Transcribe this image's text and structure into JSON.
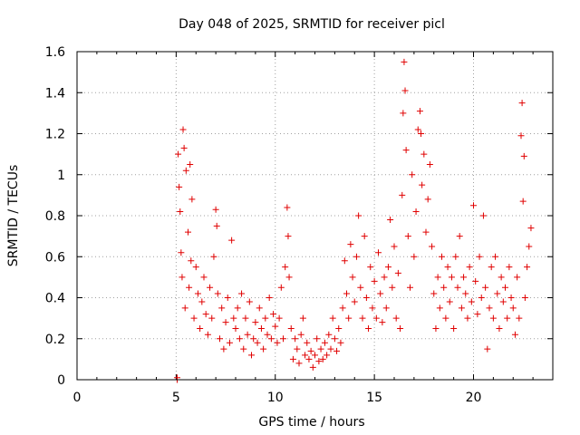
{
  "chart_data": {
    "type": "scatter",
    "title": "Day 048 of 2025, SRMTID for receiver picl",
    "xlabel": "GPS time / hours",
    "ylabel": "SRMTID / TECUs",
    "xlim": [
      0,
      24
    ],
    "ylim": [
      0,
      1.6
    ],
    "xticks": [
      0,
      5,
      10,
      15,
      20
    ],
    "xtick_labels": [
      "0",
      "5",
      "10",
      "15",
      "20"
    ],
    "yticks": [
      0,
      0.2,
      0.4,
      0.6,
      0.8,
      1.0,
      1.2,
      1.4,
      1.6
    ],
    "ytick_labels": [
      "0",
      "0.2",
      "0.4",
      "0.6",
      "0.8",
      "1",
      "1.2",
      "1.4",
      "1.6"
    ],
    "grid": true,
    "legend": "none",
    "marker": "plus",
    "series": [
      {
        "name": "SRMTID",
        "color": "#e00000",
        "points": [
          [
            5.05,
            0.0
          ],
          [
            5.05,
            0.01
          ],
          [
            5.1,
            1.1
          ],
          [
            5.15,
            0.94
          ],
          [
            5.2,
            0.82
          ],
          [
            5.25,
            0.62
          ],
          [
            5.3,
            0.5
          ],
          [
            5.35,
            1.22
          ],
          [
            5.4,
            1.13
          ],
          [
            5.45,
            0.35
          ],
          [
            5.5,
            1.02
          ],
          [
            5.6,
            0.72
          ],
          [
            5.65,
            0.45
          ],
          [
            5.7,
            1.05
          ],
          [
            5.75,
            0.58
          ],
          [
            5.8,
            0.88
          ],
          [
            5.9,
            0.3
          ],
          [
            6.0,
            0.55
          ],
          [
            6.1,
            0.42
          ],
          [
            6.2,
            0.25
          ],
          [
            6.3,
            0.38
          ],
          [
            6.4,
            0.5
          ],
          [
            6.5,
            0.32
          ],
          [
            6.6,
            0.22
          ],
          [
            6.7,
            0.45
          ],
          [
            6.8,
            0.3
          ],
          [
            6.9,
            0.6
          ],
          [
            7.0,
            0.83
          ],
          [
            7.05,
            0.75
          ],
          [
            7.1,
            0.42
          ],
          [
            7.2,
            0.2
          ],
          [
            7.3,
            0.35
          ],
          [
            7.4,
            0.15
          ],
          [
            7.5,
            0.28
          ],
          [
            7.6,
            0.4
          ],
          [
            7.7,
            0.18
          ],
          [
            7.8,
            0.68
          ],
          [
            7.9,
            0.3
          ],
          [
            8.0,
            0.25
          ],
          [
            8.1,
            0.35
          ],
          [
            8.2,
            0.2
          ],
          [
            8.3,
            0.42
          ],
          [
            8.4,
            0.15
          ],
          [
            8.5,
            0.3
          ],
          [
            8.6,
            0.22
          ],
          [
            8.7,
            0.38
          ],
          [
            8.8,
            0.12
          ],
          [
            8.9,
            0.2
          ],
          [
            9.0,
            0.28
          ],
          [
            9.1,
            0.18
          ],
          [
            9.2,
            0.35
          ],
          [
            9.3,
            0.25
          ],
          [
            9.4,
            0.15
          ],
          [
            9.5,
            0.3
          ],
          [
            9.6,
            0.22
          ],
          [
            9.7,
            0.4
          ],
          [
            9.8,
            0.2
          ],
          [
            9.9,
            0.32
          ],
          [
            10.0,
            0.26
          ],
          [
            10.1,
            0.18
          ],
          [
            10.2,
            0.3
          ],
          [
            10.3,
            0.45
          ],
          [
            10.4,
            0.2
          ],
          [
            10.5,
            0.55
          ],
          [
            10.6,
            0.84
          ],
          [
            10.65,
            0.7
          ],
          [
            10.7,
            0.5
          ],
          [
            10.8,
            0.25
          ],
          [
            10.9,
            0.1
          ],
          [
            11.0,
            0.2
          ],
          [
            11.1,
            0.15
          ],
          [
            11.2,
            0.08
          ],
          [
            11.3,
            0.22
          ],
          [
            11.4,
            0.3
          ],
          [
            11.5,
            0.12
          ],
          [
            11.6,
            0.18
          ],
          [
            11.7,
            0.1
          ],
          [
            11.8,
            0.14
          ],
          [
            11.9,
            0.06
          ],
          [
            12.0,
            0.12
          ],
          [
            12.1,
            0.2
          ],
          [
            12.2,
            0.09
          ],
          [
            12.3,
            0.15
          ],
          [
            12.4,
            0.1
          ],
          [
            12.5,
            0.18
          ],
          [
            12.6,
            0.12
          ],
          [
            12.7,
            0.22
          ],
          [
            12.8,
            0.15
          ],
          [
            12.9,
            0.3
          ],
          [
            13.0,
            0.2
          ],
          [
            13.1,
            0.14
          ],
          [
            13.2,
            0.25
          ],
          [
            13.3,
            0.18
          ],
          [
            13.4,
            0.35
          ],
          [
            13.5,
            0.58
          ],
          [
            13.6,
            0.42
          ],
          [
            13.7,
            0.3
          ],
          [
            13.8,
            0.66
          ],
          [
            13.9,
            0.5
          ],
          [
            14.0,
            0.38
          ],
          [
            14.1,
            0.6
          ],
          [
            14.2,
            0.8
          ],
          [
            14.3,
            0.45
          ],
          [
            14.4,
            0.3
          ],
          [
            14.5,
            0.7
          ],
          [
            14.6,
            0.4
          ],
          [
            14.7,
            0.25
          ],
          [
            14.8,
            0.55
          ],
          [
            14.9,
            0.35
          ],
          [
            15.0,
            0.48
          ],
          [
            15.1,
            0.3
          ],
          [
            15.2,
            0.62
          ],
          [
            15.3,
            0.42
          ],
          [
            15.4,
            0.28
          ],
          [
            15.5,
            0.5
          ],
          [
            15.6,
            0.35
          ],
          [
            15.7,
            0.55
          ],
          [
            15.8,
            0.78
          ],
          [
            15.9,
            0.45
          ],
          [
            16.0,
            0.65
          ],
          [
            16.1,
            0.3
          ],
          [
            16.2,
            0.52
          ],
          [
            16.3,
            0.25
          ],
          [
            16.4,
            0.9
          ],
          [
            16.45,
            1.3
          ],
          [
            16.5,
            1.55
          ],
          [
            16.55,
            1.41
          ],
          [
            16.6,
            1.12
          ],
          [
            16.7,
            0.7
          ],
          [
            16.8,
            0.45
          ],
          [
            16.9,
            1.0
          ],
          [
            17.0,
            0.6
          ],
          [
            17.1,
            0.82
          ],
          [
            17.2,
            1.22
          ],
          [
            17.3,
            1.31
          ],
          [
            17.35,
            1.2
          ],
          [
            17.4,
            0.95
          ],
          [
            17.5,
            1.1
          ],
          [
            17.6,
            0.72
          ],
          [
            17.7,
            0.88
          ],
          [
            17.8,
            1.05
          ],
          [
            17.9,
            0.65
          ],
          [
            18.0,
            0.42
          ],
          [
            18.1,
            0.25
          ],
          [
            18.2,
            0.5
          ],
          [
            18.3,
            0.35
          ],
          [
            18.4,
            0.6
          ],
          [
            18.5,
            0.45
          ],
          [
            18.6,
            0.3
          ],
          [
            18.7,
            0.55
          ],
          [
            18.8,
            0.38
          ],
          [
            18.9,
            0.5
          ],
          [
            19.0,
            0.25
          ],
          [
            19.1,
            0.6
          ],
          [
            19.2,
            0.45
          ],
          [
            19.3,
            0.7
          ],
          [
            19.4,
            0.35
          ],
          [
            19.5,
            0.5
          ],
          [
            19.6,
            0.42
          ],
          [
            19.7,
            0.3
          ],
          [
            19.8,
            0.55
          ],
          [
            19.9,
            0.38
          ],
          [
            20.0,
            0.85
          ],
          [
            20.1,
            0.48
          ],
          [
            20.2,
            0.32
          ],
          [
            20.3,
            0.6
          ],
          [
            20.4,
            0.4
          ],
          [
            20.5,
            0.8
          ],
          [
            20.6,
            0.45
          ],
          [
            20.7,
            0.15
          ],
          [
            20.8,
            0.35
          ],
          [
            20.9,
            0.55
          ],
          [
            21.0,
            0.3
          ],
          [
            21.1,
            0.6
          ],
          [
            21.2,
            0.42
          ],
          [
            21.3,
            0.25
          ],
          [
            21.4,
            0.5
          ],
          [
            21.5,
            0.38
          ],
          [
            21.6,
            0.45
          ],
          [
            21.7,
            0.3
          ],
          [
            21.8,
            0.55
          ],
          [
            21.9,
            0.4
          ],
          [
            22.0,
            0.35
          ],
          [
            22.1,
            0.22
          ],
          [
            22.2,
            0.5
          ],
          [
            22.3,
            0.3
          ],
          [
            22.4,
            1.19
          ],
          [
            22.45,
            1.35
          ],
          [
            22.5,
            0.87
          ],
          [
            22.55,
            1.09
          ],
          [
            22.6,
            0.4
          ],
          [
            22.7,
            0.55
          ],
          [
            22.8,
            0.65
          ],
          [
            22.9,
            0.74
          ]
        ]
      }
    ]
  }
}
